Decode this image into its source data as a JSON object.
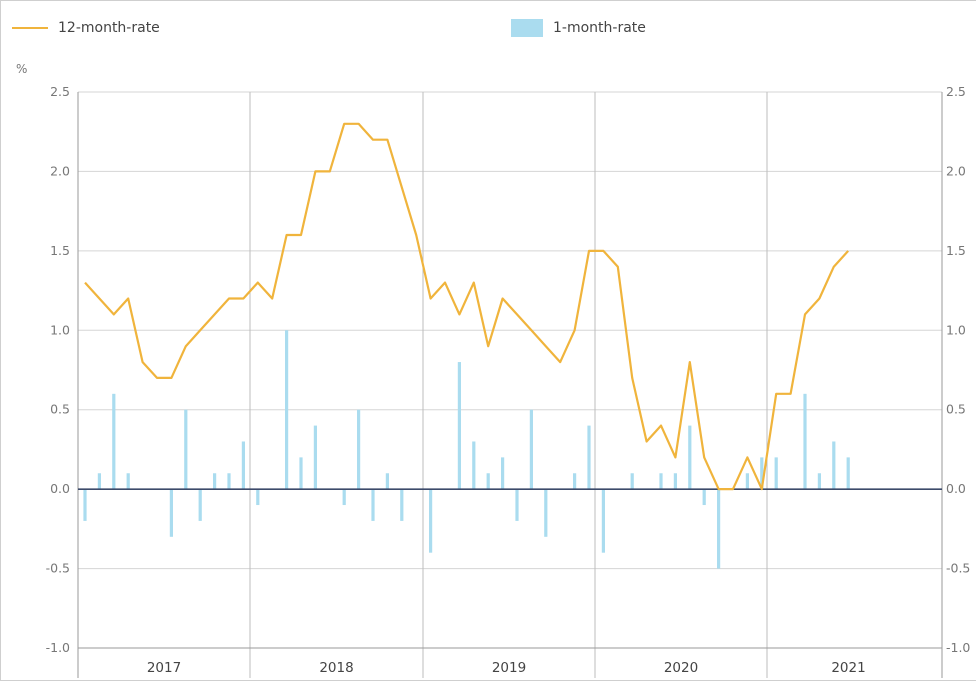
{
  "legend": {
    "line_label": "12-month-rate",
    "bar_label": "1-month-rate"
  },
  "unit_label": "%",
  "chart_data": {
    "type": "bar",
    "title": "",
    "xlabel": "",
    "ylabel": "%",
    "ylim": [
      -1.0,
      2.5
    ],
    "y_ticks": [
      "-1.0",
      "-0.5",
      "0.0",
      "0.5",
      "1.0",
      "1.5",
      "2.0",
      "2.5"
    ],
    "year_labels": [
      "2017",
      "2018",
      "2019",
      "2020",
      "2021"
    ],
    "grid": true,
    "legend_position": "top",
    "colors": {
      "line": "#f0b43c",
      "bar": "#aadcef",
      "zero_line": "#3c4a6a",
      "grid": "#d5d5d5"
    },
    "series": [
      {
        "name": "12-month-rate",
        "type": "line",
        "values": [
          1.3,
          1.2,
          1.1,
          1.2,
          0.8,
          0.7,
          0.7,
          0.9,
          1.0,
          1.1,
          1.2,
          1.2,
          1.3,
          1.2,
          1.6,
          1.6,
          2.0,
          2.0,
          2.3,
          2.3,
          2.2,
          2.2,
          1.9,
          1.6,
          1.2,
          1.3,
          1.1,
          1.3,
          0.9,
          1.2,
          1.1,
          1.0,
          0.9,
          0.8,
          1.0,
          1.5,
          1.5,
          1.4,
          0.7,
          0.3,
          0.4,
          0.2,
          0.8,
          0.2,
          0.0,
          0.0,
          0.2,
          0.0,
          0.6,
          0.6,
          1.1,
          1.2,
          1.4,
          1.5
        ]
      },
      {
        "name": "1-month-rate",
        "type": "bar",
        "values": [
          -0.2,
          0.1,
          0.6,
          0.1,
          0.0,
          0.0,
          -0.3,
          0.5,
          -0.2,
          0.1,
          0.1,
          0.3,
          -0.1,
          0.0,
          1.0,
          0.2,
          0.4,
          0.0,
          -0.1,
          0.5,
          -0.2,
          0.1,
          -0.2,
          0.0,
          -0.4,
          0.0,
          0.8,
          0.3,
          0.1,
          0.2,
          -0.2,
          0.5,
          -0.3,
          0.0,
          0.1,
          0.4,
          -0.4,
          0.0,
          0.1,
          0.0,
          0.1,
          0.1,
          0.4,
          -0.1,
          -0.5,
          0.0,
          0.1,
          0.2,
          0.2,
          0.0,
          0.6,
          0.1,
          0.3,
          0.2
        ]
      }
    ]
  }
}
